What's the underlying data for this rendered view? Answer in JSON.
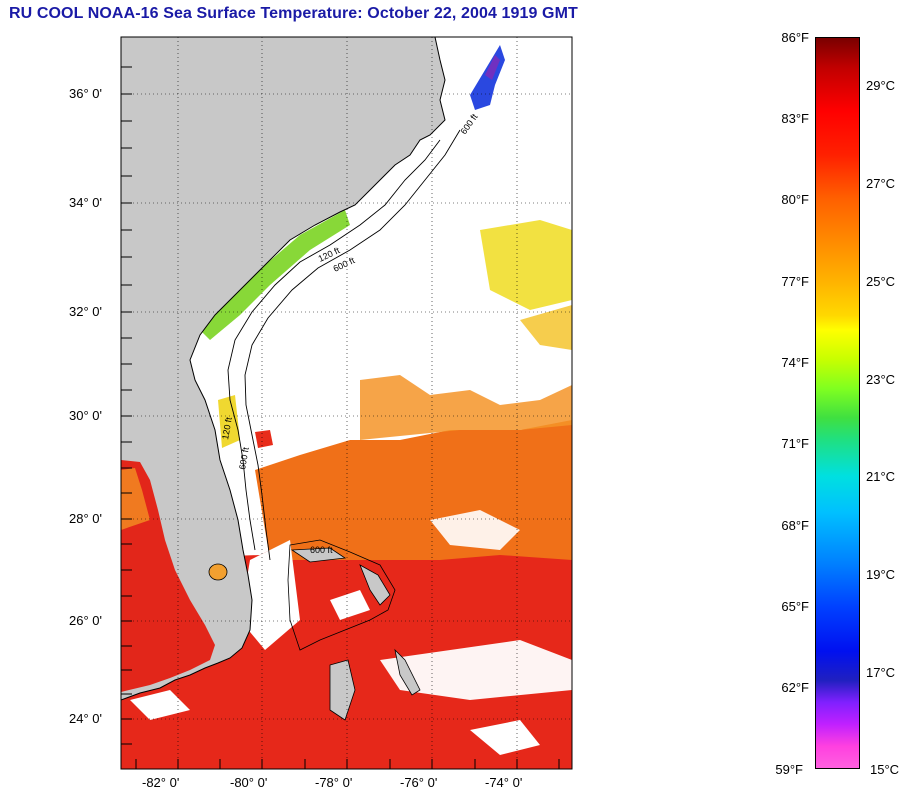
{
  "title": "RU COOL  NOAA-16  Sea Surface Temperature:  October 22, 2004 1919 GMT",
  "map": {
    "lat_labels": [
      "36° 0'",
      "34° 0'",
      "32° 0'",
      "30° 0'",
      "28° 0'",
      "26° 0'",
      "24° 0'"
    ],
    "lon_labels": [
      "-82° 0'",
      "-80° 0'",
      "-78° 0'",
      "-76° 0'",
      "-74° 0'"
    ],
    "contour_labels": [
      "600 ft",
      "120 ft",
      "600 ft",
      "120 ft",
      "600 ft",
      "600 ft"
    ],
    "colors": {
      "land": "#c8c8c8",
      "cloud": "#ffffff",
      "warm_red": "#e62010",
      "orange": "#f06a10",
      "yellow": "#f0e020",
      "green": "#80e040",
      "blue": "#2050e0"
    }
  },
  "colorbar": {
    "fahrenheit_labels": [
      "86°F",
      "83°F",
      "80°F",
      "77°F",
      "74°F",
      "71°F",
      "68°F",
      "65°F",
      "62°F",
      "59°F"
    ],
    "celsius_labels": [
      "29°C",
      "27°C",
      "25°C",
      "23°C",
      "21°C",
      "19°C",
      "17°C",
      "15°C"
    ]
  }
}
